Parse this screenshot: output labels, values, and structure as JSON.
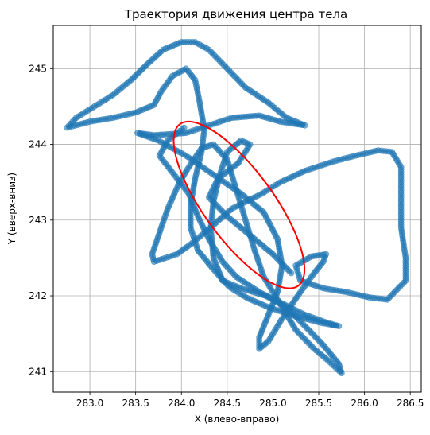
{
  "chart_data": {
    "type": "scatter",
    "title": "Траектория движения центра тела",
    "xlabel": "X (влево-вправо)",
    "ylabel": "Y (вверх-вниз)",
    "xlim": [
      282.6,
      286.62
    ],
    "ylim": [
      240.73,
      245.57
    ],
    "xticks": [
      283.0,
      283.5,
      284.0,
      284.5,
      285.0,
      285.5,
      286.0,
      286.5
    ],
    "xtick_labels": [
      "283.0",
      "283.5",
      "284.0",
      "284.5",
      "285.0",
      "285.5",
      "286.0",
      "286.5"
    ],
    "yticks": [
      241,
      242,
      243,
      244,
      245
    ],
    "ytick_labels": [
      "241",
      "242",
      "243",
      "244",
      "245"
    ],
    "grid": true,
    "point_color": "#1f77b4",
    "ellipse_color": "#ff0000",
    "series": [
      {
        "type": "line+scatter",
        "density": "dense",
        "waypoints": [
          [
            284.03,
            244.22
          ],
          [
            283.85,
            244.05
          ],
          [
            283.76,
            243.85
          ],
          [
            283.92,
            243.6
          ],
          [
            284.08,
            243.35
          ],
          [
            284.18,
            243.05
          ],
          [
            284.3,
            242.75
          ],
          [
            284.45,
            242.45
          ],
          [
            284.6,
            242.25
          ],
          [
            284.85,
            242.05
          ],
          [
            285.1,
            241.9
          ],
          [
            285.35,
            241.75
          ],
          [
            285.58,
            241.65
          ],
          [
            285.72,
            241.6
          ],
          [
            285.5,
            241.65
          ],
          [
            285.2,
            241.75
          ],
          [
            284.95,
            241.85
          ],
          [
            284.72,
            241.97
          ],
          [
            284.52,
            242.12
          ],
          [
            284.35,
            242.35
          ],
          [
            284.18,
            242.6
          ],
          [
            284.1,
            242.9
          ],
          [
            284.1,
            243.2
          ],
          [
            284.15,
            243.55
          ],
          [
            284.22,
            243.9
          ],
          [
            284.25,
            244.2
          ],
          [
            284.2,
            244.55
          ],
          [
            284.15,
            244.85
          ],
          [
            284.05,
            245.0
          ],
          [
            283.9,
            244.9
          ],
          [
            283.78,
            244.7
          ],
          [
            283.7,
            244.52
          ],
          [
            283.5,
            244.42
          ],
          [
            283.25,
            244.35
          ],
          [
            283.0,
            244.3
          ],
          [
            282.75,
            244.22
          ],
          [
            282.85,
            244.35
          ],
          [
            283.05,
            244.5
          ],
          [
            283.25,
            244.65
          ],
          [
            283.45,
            244.85
          ],
          [
            283.62,
            245.05
          ],
          [
            283.8,
            245.25
          ],
          [
            284.0,
            245.35
          ],
          [
            284.15,
            245.35
          ],
          [
            284.3,
            245.25
          ],
          [
            284.5,
            245.0
          ],
          [
            284.7,
            244.75
          ],
          [
            284.95,
            244.55
          ],
          [
            285.15,
            244.35
          ],
          [
            285.35,
            244.25
          ],
          [
            285.08,
            244.3
          ],
          [
            284.85,
            244.38
          ],
          [
            284.55,
            244.35
          ],
          [
            284.3,
            244.25
          ],
          [
            284.05,
            244.15
          ],
          [
            283.7,
            244.12
          ],
          [
            283.52,
            244.15
          ],
          [
            283.75,
            244.05
          ],
          [
            284.05,
            243.85
          ],
          [
            284.35,
            243.6
          ],
          [
            284.65,
            243.35
          ],
          [
            284.9,
            243.1
          ],
          [
            285.05,
            242.75
          ],
          [
            285.1,
            242.4
          ],
          [
            285.05,
            242.05
          ],
          [
            284.95,
            241.75
          ],
          [
            284.85,
            241.45
          ],
          [
            284.85,
            241.3
          ],
          [
            284.95,
            241.4
          ],
          [
            285.1,
            241.7
          ],
          [
            285.3,
            242.05
          ],
          [
            285.45,
            242.3
          ],
          [
            285.55,
            242.45
          ],
          [
            285.58,
            242.55
          ],
          [
            285.42,
            242.52
          ],
          [
            285.25,
            242.4
          ],
          [
            285.3,
            242.2
          ],
          [
            285.55,
            242.1
          ],
          [
            285.8,
            242.05
          ],
          [
            286.05,
            241.98
          ],
          [
            286.25,
            241.95
          ],
          [
            286.45,
            242.2
          ],
          [
            286.45,
            242.5
          ],
          [
            286.4,
            242.9
          ],
          [
            286.4,
            243.3
          ],
          [
            286.4,
            243.7
          ],
          [
            286.3,
            243.9
          ],
          [
            286.15,
            243.92
          ],
          [
            285.9,
            243.85
          ],
          [
            285.65,
            243.77
          ],
          [
            285.35,
            243.65
          ],
          [
            285.08,
            243.5
          ],
          [
            284.88,
            243.35
          ],
          [
            284.55,
            243.15
          ],
          [
            284.3,
            242.88
          ],
          [
            284.1,
            242.68
          ],
          [
            283.95,
            242.55
          ],
          [
            283.7,
            242.45
          ],
          [
            283.68,
            242.55
          ],
          [
            283.85,
            243.15
          ],
          [
            283.98,
            243.5
          ],
          [
            284.08,
            243.7
          ],
          [
            284.22,
            243.95
          ],
          [
            284.35,
            244.0
          ],
          [
            284.5,
            243.8
          ],
          [
            284.6,
            243.4
          ],
          [
            284.7,
            243.0
          ],
          [
            284.8,
            242.6
          ],
          [
            284.9,
            242.25
          ],
          [
            285.05,
            241.95
          ],
          [
            285.25,
            241.55
          ],
          [
            285.45,
            241.3
          ],
          [
            285.6,
            241.15
          ],
          [
            285.75,
            240.98
          ],
          [
            285.72,
            241.1
          ],
          [
            285.55,
            241.35
          ],
          [
            285.35,
            241.6
          ],
          [
            285.15,
            241.85
          ],
          [
            284.92,
            242.0
          ],
          [
            284.65,
            242.1
          ],
          [
            284.45,
            242.2
          ],
          [
            284.35,
            242.5
          ],
          [
            284.32,
            242.9
          ],
          [
            284.35,
            243.25
          ],
          [
            284.42,
            243.6
          ],
          [
            284.5,
            243.9
          ],
          [
            284.65,
            244.05
          ],
          [
            284.75,
            244.0
          ],
          [
            284.62,
            243.75
          ],
          [
            284.4,
            243.55
          ],
          [
            284.3,
            243.3
          ],
          [
            284.5,
            243.05
          ],
          [
            284.75,
            242.8
          ],
          [
            285.0,
            242.55
          ],
          [
            285.2,
            242.3
          ]
        ]
      }
    ],
    "ellipse": {
      "center": [
        284.63,
        243.2
      ],
      "semi_major": 1.25,
      "semi_minor": 0.4,
      "angle_deg": -60
    }
  }
}
